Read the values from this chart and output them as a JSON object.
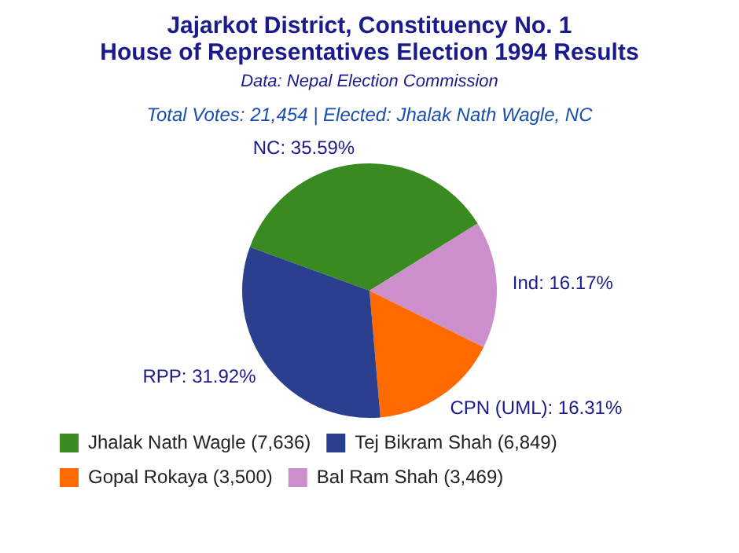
{
  "chart_data": {
    "type": "pie",
    "title": "Jajarkot District, Constituency No. 1\nHouse of Representatives Election 1994 Results",
    "subtitle": "Data: Nepal Election Commission",
    "annotations": [
      "Total Votes: 21,454 | Elected: Jhalak Nath Wagle, NC"
    ],
    "categories": [
      "Jhalak Nath Wagle (7,636)",
      "Bal Ram Shah (3,469)",
      "Gopal Rokaya (3,500)",
      "Tej Bikram Shah (6,849)"
    ],
    "values": [
      35.59,
      16.17,
      16.31,
      31.92
    ],
    "colors": [
      "#3a8a22",
      "#cc8fcc",
      "#ff6a00",
      "#2b3f8f"
    ],
    "value_labels": [
      "NC: 35.59%",
      "Ind: 16.17%",
      "CPN (UML): 16.31%",
      "RPP: 31.92%"
    ],
    "legend": "bottom"
  }
}
